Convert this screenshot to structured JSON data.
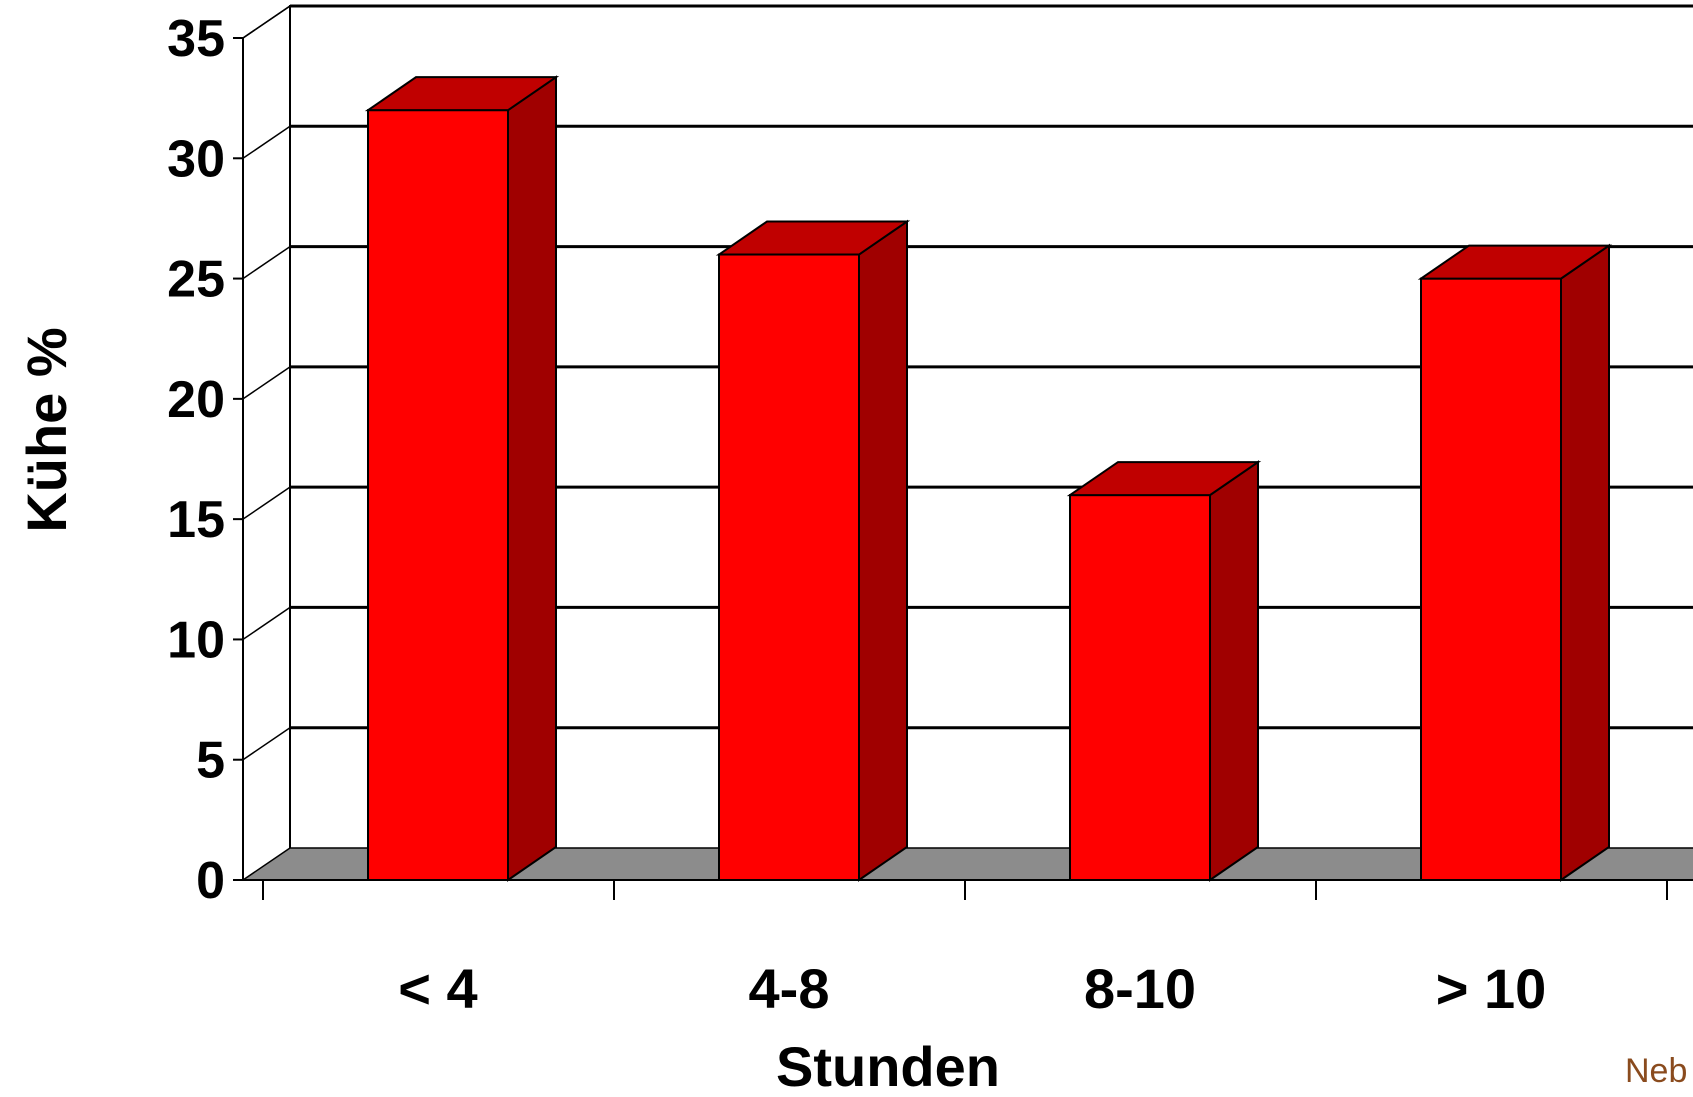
{
  "chart_data": {
    "type": "bar",
    "categories": [
      "< 4",
      "4-8",
      "8-10",
      "> 10"
    ],
    "series": [
      {
        "values": [
          32,
          26,
          16,
          25
        ]
      }
    ],
    "xlabel": "Stunden",
    "ylabel": "Kühe %",
    "ylim": [
      0,
      35
    ],
    "yticks": [
      0,
      5,
      10,
      15,
      20,
      25,
      30,
      35
    ],
    "grid": true,
    "style": "3d",
    "colors": {
      "bar_front": "#ff0000",
      "bar_top": "#c00000",
      "bar_side": "#a00000",
      "floor": "#8c8c8c"
    }
  },
  "credit_text": "Neb"
}
